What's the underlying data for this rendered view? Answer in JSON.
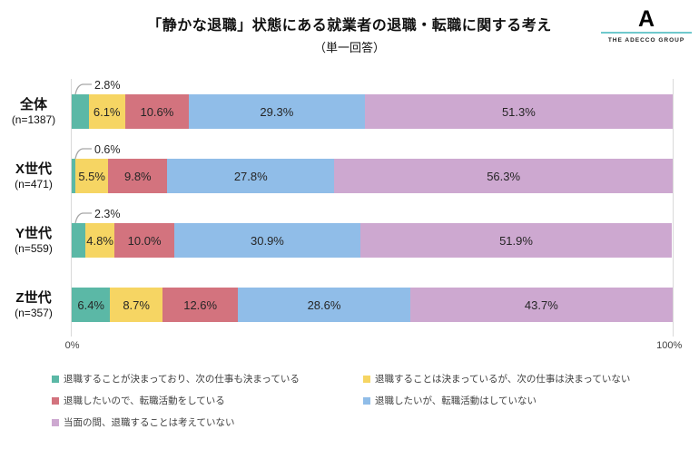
{
  "logo": {
    "mark": "A",
    "text": "THE ADECCO GROUP",
    "line_color": "#6fc9cd"
  },
  "chart_data": {
    "type": "bar",
    "stacked": true,
    "orientation": "horizontal",
    "title": "「静かな退職」状態にある就業者の退職・転職に関する考え",
    "subtitle": "（単一回答）",
    "xlim": [
      0,
      100
    ],
    "x_axis": {
      "min_label": "0%",
      "max_label": "100%"
    },
    "grid": "left-and-right-edge-lines-only",
    "legend_position": "bottom",
    "categories": [
      {
        "label": "全体",
        "n": "(n=1387)"
      },
      {
        "label": "X世代",
        "n": "(n=471)"
      },
      {
        "label": "Y世代",
        "n": "(n=559)"
      },
      {
        "label": "Z世代",
        "n": "(n=357)"
      }
    ],
    "series": [
      {
        "name": "退職することが決まっており、次の仕事も決まっている",
        "color": "#5bb8a6",
        "values": [
          2.8,
          0.6,
          2.3,
          6.4
        ]
      },
      {
        "name": "退職することは決まっているが、次の仕事は決まっていない",
        "color": "#f6d563",
        "values": [
          6.1,
          5.5,
          4.8,
          8.7
        ]
      },
      {
        "name": "退職したいので、転職活動をしている",
        "color": "#d3737e",
        "values": [
          10.6,
          9.8,
          10.0,
          12.6
        ]
      },
      {
        "name": "退職したいが、転職活動はしていない",
        "color": "#90bde8",
        "values": [
          29.3,
          27.8,
          30.9,
          28.6
        ]
      },
      {
        "name": "当面の間、退職することは考えていない",
        "color": "#cda8d0",
        "values": [
          51.3,
          56.3,
          51.9,
          43.7
        ]
      }
    ],
    "value_label_format": "{value}%",
    "first_segment_callout_rows": [
      0,
      1,
      2
    ],
    "callout_line_color": "#a6a6a6"
  }
}
